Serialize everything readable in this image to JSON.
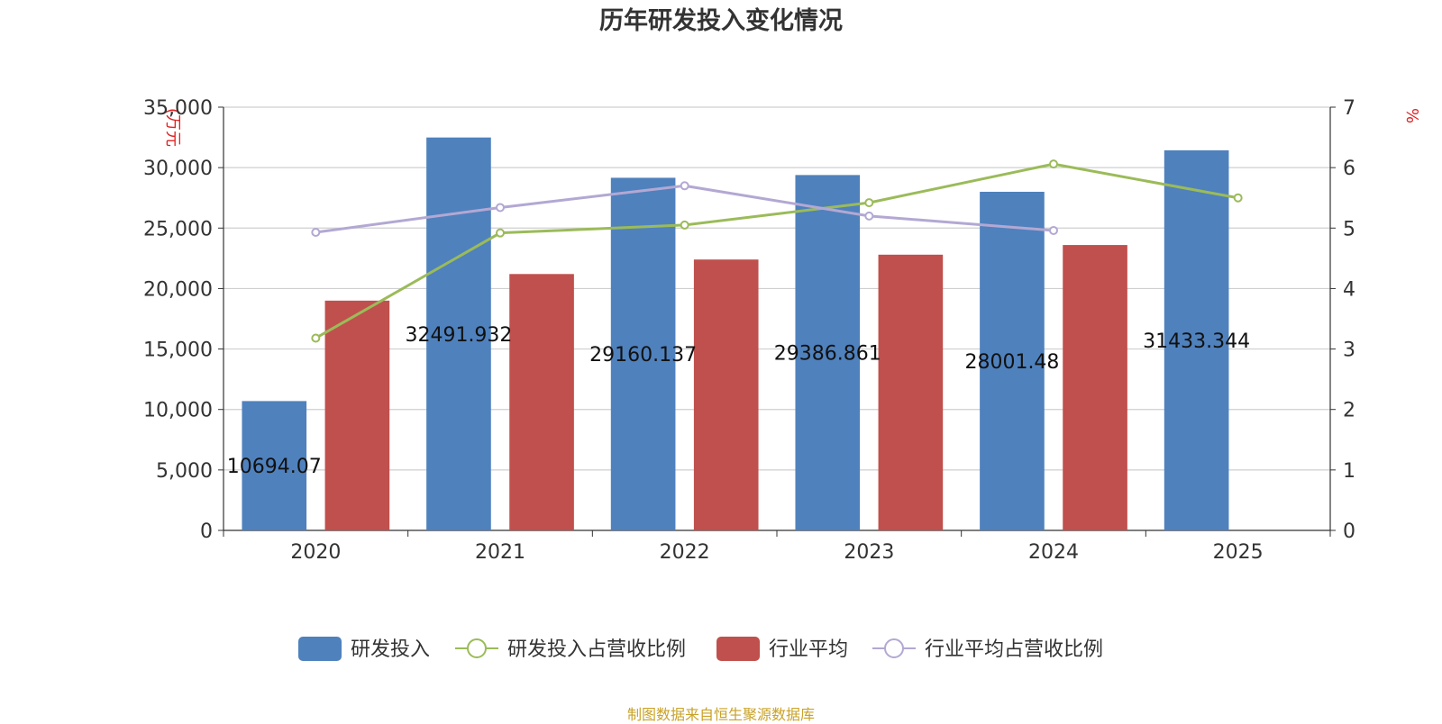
{
  "chart_data": {
    "type": "bar",
    "title": "历年研发投入变化情况",
    "categories": [
      "2020",
      "2021",
      "2022",
      "2023",
      "2024",
      "2025"
    ],
    "y_left": {
      "unit_label": "(万元",
      "ylim": [
        0,
        35000
      ],
      "ticks": [
        "0",
        "5,000",
        "10,000",
        "15,000",
        "20,000",
        "25,000",
        "30,000",
        "35,000"
      ]
    },
    "y_right": {
      "unit_label": "%",
      "ylim": [
        0,
        7
      ],
      "ticks": [
        "0",
        "1",
        "2",
        "3",
        "4",
        "5",
        "6",
        "7"
      ]
    },
    "grid": true,
    "legend_position": "bottom",
    "series": [
      {
        "name": "研发投入",
        "kind": "bar",
        "axis": "left",
        "color": "#4f81bd",
        "values": [
          10694.07,
          32491.932,
          29160.137,
          29386.861,
          28001.48,
          31433.344
        ],
        "labels": [
          "10694.07",
          "32491.932",
          "29160.137",
          "29386.861",
          "28001.48",
          "31433.344"
        ]
      },
      {
        "name": "研发投入占营收比例",
        "kind": "line",
        "axis": "right",
        "color": "#9bbb59",
        "values": [
          3.18,
          4.92,
          5.05,
          5.42,
          6.06,
          5.5
        ]
      },
      {
        "name": "行业平均",
        "kind": "bar",
        "axis": "left",
        "color": "#c0504d",
        "values": [
          19000,
          21200,
          22400,
          22800,
          23600,
          null
        ]
      },
      {
        "name": "行业平均占营收比例",
        "kind": "line",
        "axis": "right",
        "color": "#b3a8d3",
        "values": [
          4.93,
          5.34,
          5.7,
          5.2,
          4.96,
          null
        ]
      }
    ]
  },
  "footer": {
    "source_text": "制图数据来自恒生聚源数据库"
  }
}
